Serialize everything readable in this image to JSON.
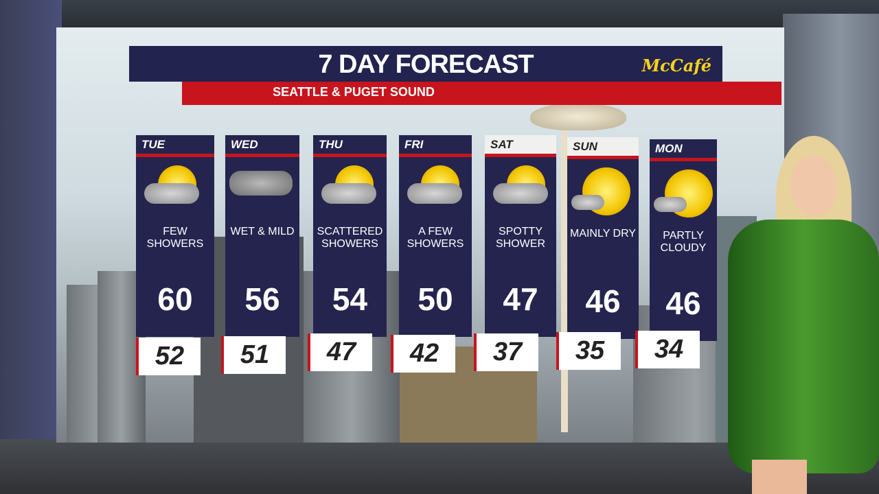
{
  "header": {
    "title": "7 DAY FORECAST",
    "subtitle": "SEATTLE & PUGET SOUND",
    "sponsor": "McCafé"
  },
  "colors": {
    "navy": "#24244f",
    "red": "#c8141d",
    "sponsor": "#f7d21a"
  },
  "days": [
    {
      "day": "TUE",
      "condition": "FEW SHOWERS",
      "high": "60",
      "low": "52",
      "icon": "sun-cloud-showers-icon"
    },
    {
      "day": "WED",
      "condition": "WET & MILD",
      "high": "56",
      "low": "51",
      "icon": "rain-cloud-icon"
    },
    {
      "day": "THU",
      "condition": "SCATTERED SHOWERS",
      "high": "54",
      "low": "47",
      "icon": "sun-cloud-showers-icon"
    },
    {
      "day": "FRI",
      "condition": "A FEW SHOWERS",
      "high": "50",
      "low": "42",
      "icon": "sun-cloud-showers-icon"
    },
    {
      "day": "SAT",
      "condition": "SPOTTY SHOWER",
      "high": "47",
      "low": "37",
      "icon": "sun-cloud-showers-icon"
    },
    {
      "day": "SUN",
      "condition": "MAINLY DRY",
      "high": "46",
      "low": "35",
      "icon": "mostly-sunny-icon"
    },
    {
      "day": "MON",
      "condition": "PARTLY CLOUDY",
      "high": "46",
      "low": "34",
      "icon": "partly-cloudy-icon"
    }
  ]
}
